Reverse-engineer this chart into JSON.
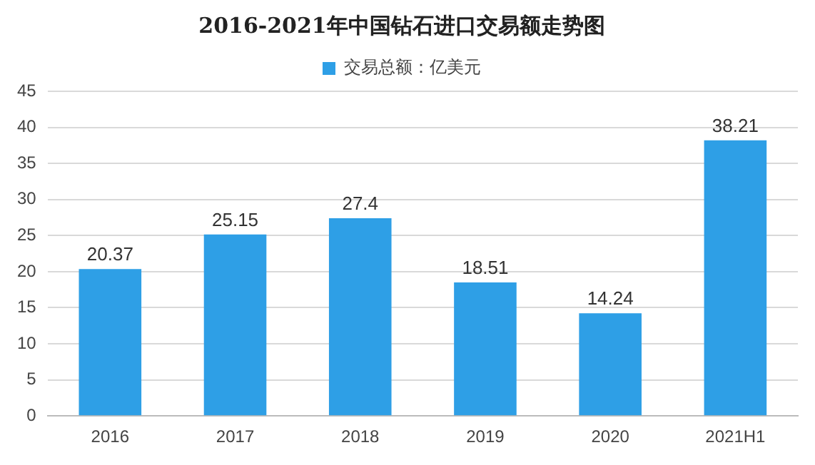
{
  "chart_data": {
    "type": "bar",
    "title": "2016-2021年中国钻石进口交易额走势图",
    "categories": [
      "2016",
      "2017",
      "2018",
      "2019",
      "2020",
      "2021H1"
    ],
    "series": [
      {
        "name": "交易总额：亿美元",
        "color": "#2e9fe6",
        "values": [
          20.37,
          25.15,
          27.4,
          18.51,
          14.24,
          38.21
        ]
      }
    ],
    "ylim": [
      0,
      45
    ],
    "yticks": [
      0,
      5,
      10,
      15,
      20,
      25,
      30,
      35,
      40,
      45
    ],
    "grid": "y",
    "legend": "top",
    "data_labels": true
  }
}
